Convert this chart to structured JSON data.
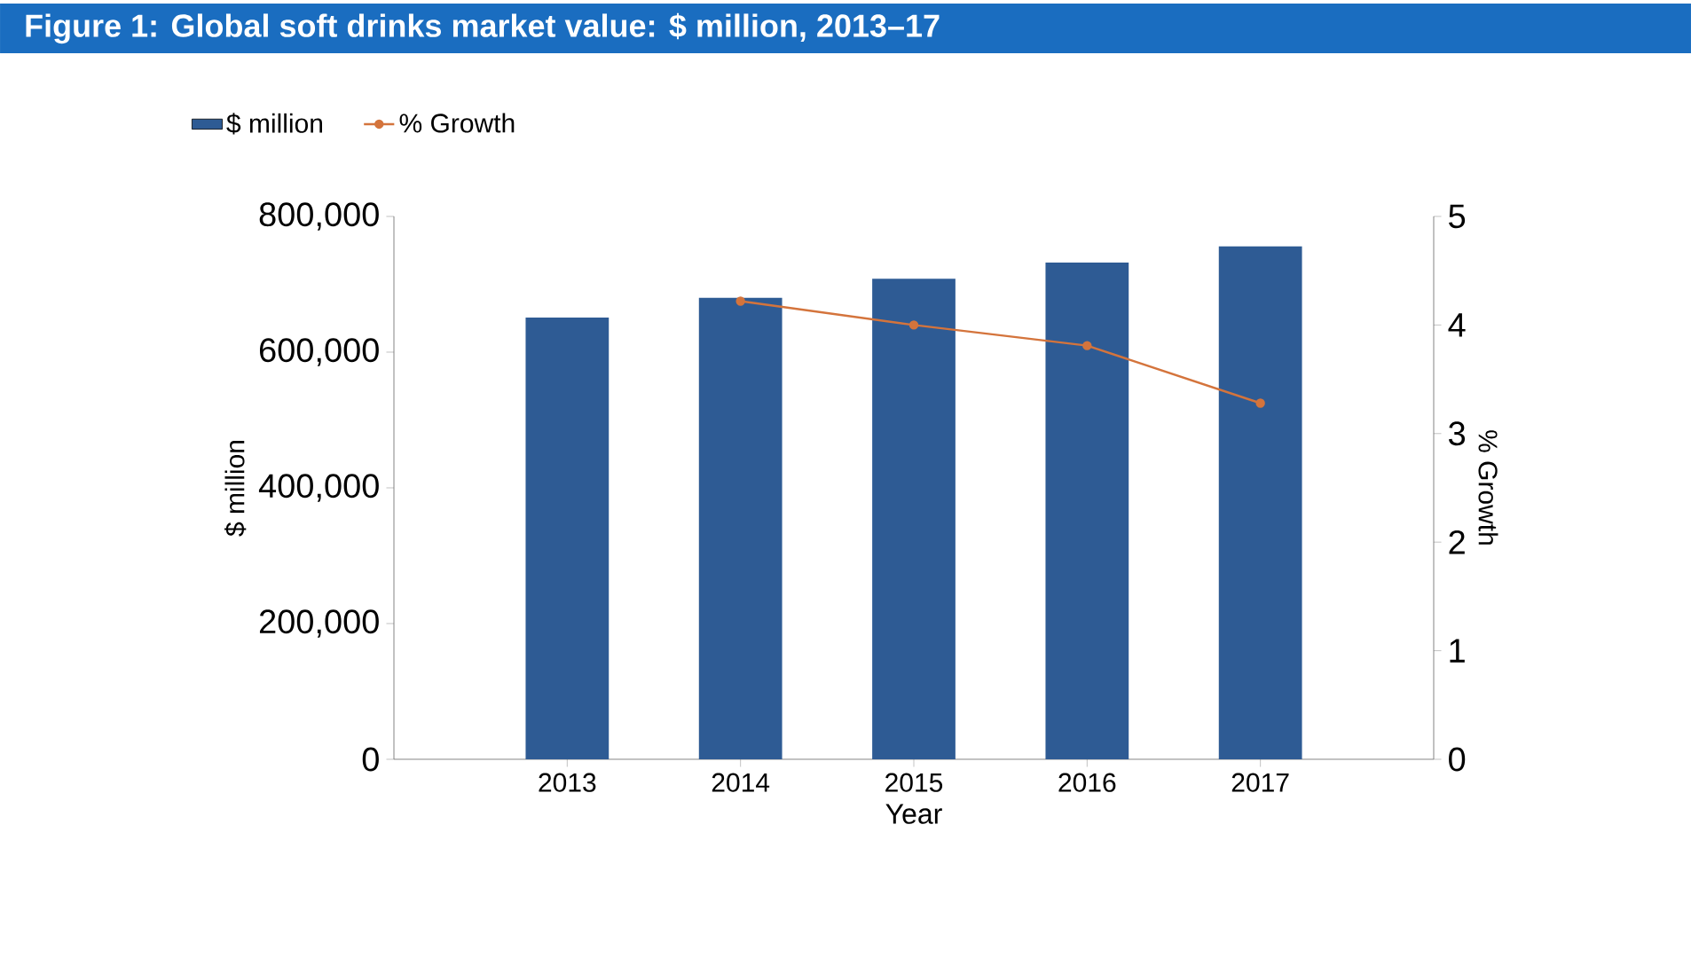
{
  "chart_data": {
    "type": "bar",
    "title": "Figure 1: Global soft drinks market value: $ million, 2013–17",
    "xlabel": "Year",
    "ylabel": "$ million",
    "y2label": "% Growth",
    "categories": [
      "2013",
      "2014",
      "2015",
      "2016",
      "2017"
    ],
    "series": [
      {
        "name": "$ million",
        "color": "#2e5b94",
        "values": [
          651000,
          680000,
          708000,
          732000,
          756000
        ]
      },
      {
        "name": "% Growth",
        "type": "line",
        "axis": "y2",
        "color": "#d4743c",
        "values": [
          null,
          4.22,
          4.0,
          3.81,
          3.28
        ]
      }
    ],
    "ylim": [
      0,
      800000
    ],
    "yticks": [
      {
        "value": 0,
        "label": "0"
      },
      {
        "value": 200000,
        "label": "200,000"
      },
      {
        "value": 400000,
        "label": "400,000"
      },
      {
        "value": 600000,
        "label": "600,000"
      },
      {
        "value": 800000,
        "label": "800,000"
      }
    ],
    "y2lim": [
      0,
      5
    ],
    "y2ticks": [
      0,
      1,
      2,
      3,
      4,
      5
    ],
    "legend": "top left",
    "grid": false,
    "marker": "circle"
  }
}
